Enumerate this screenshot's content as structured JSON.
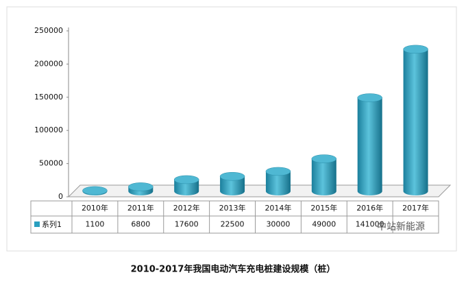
{
  "chart_data": {
    "type": "bar",
    "title": "2010-2017年我国电动汽车充电桩建设规模（桩）",
    "categories": [
      "2010年",
      "2011年",
      "2012年",
      "2013年",
      "2014年",
      "2015年",
      "2016年",
      "2017年"
    ],
    "series": [
      {
        "name": "系列1",
        "color": "#2a9fbf",
        "values": [
          1100,
          6800,
          17600,
          22500,
          30000,
          49000,
          141000,
          214000
        ]
      }
    ],
    "ylim": [
      0,
      250000
    ],
    "yticks": [
      0,
      50000,
      100000,
      150000,
      200000,
      250000
    ],
    "grid": false,
    "watermark": "中站新能源"
  }
}
